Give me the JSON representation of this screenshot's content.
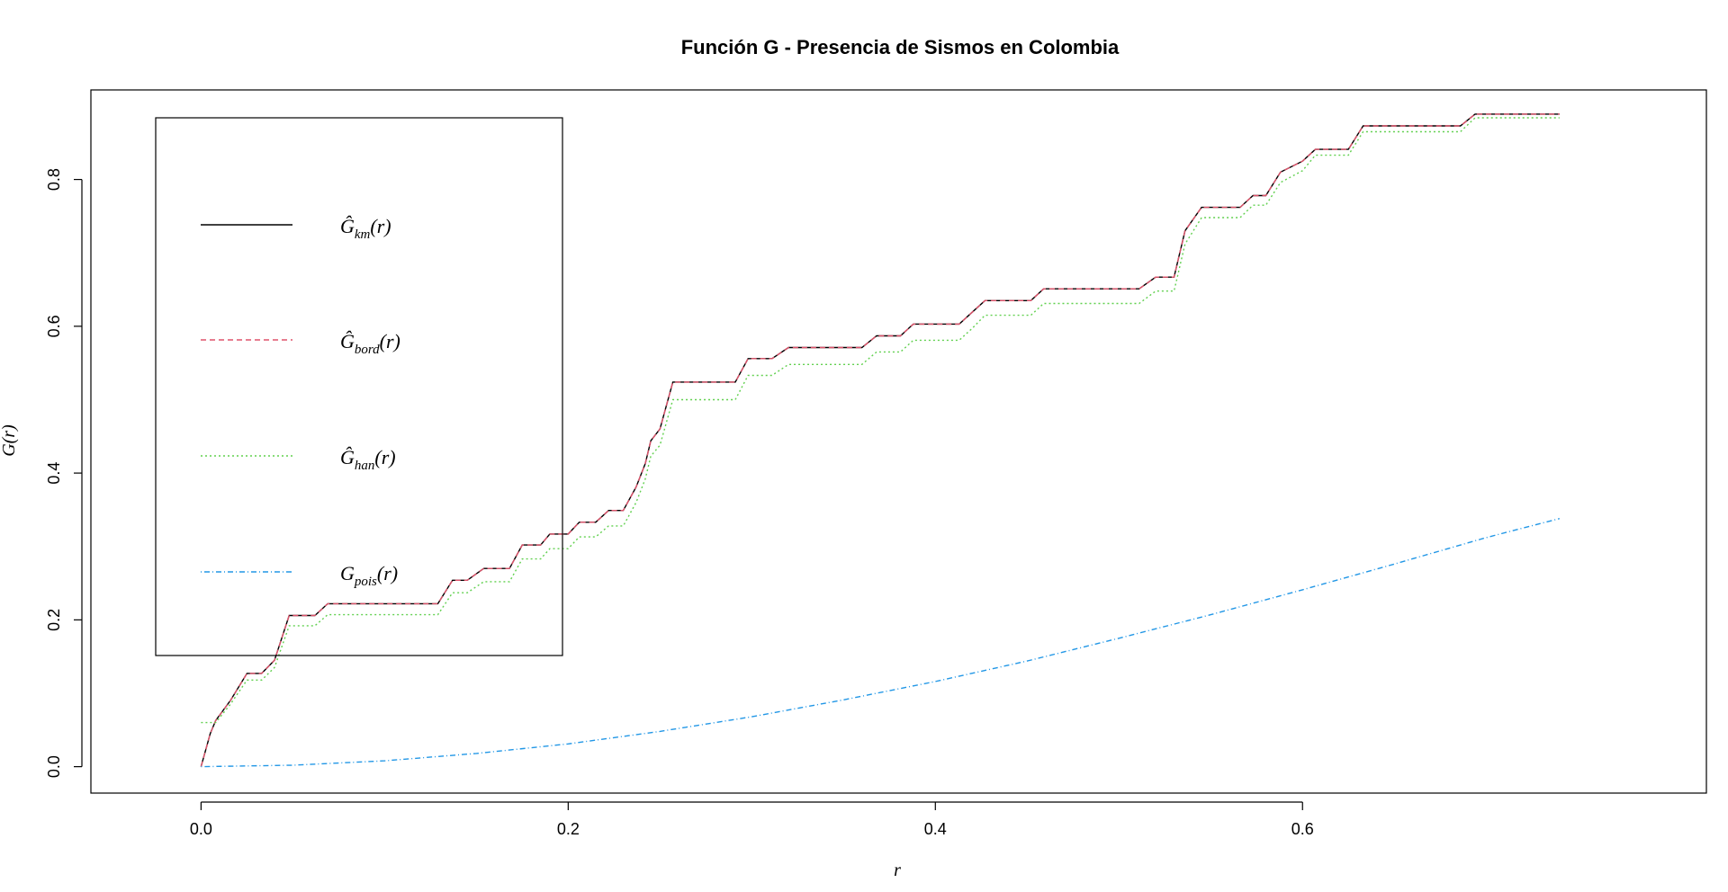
{
  "chart_data": {
    "type": "line",
    "title": "Función G - Presencia de Sismos en Colombia",
    "xlabel": "r",
    "ylabel": "G(r)",
    "xlim": [
      -0.06,
      0.82
    ],
    "ylim": [
      -0.036,
      0.922
    ],
    "x_ticks": [
      "0.0",
      "0.2",
      "0.4",
      "0.6"
    ],
    "x_tick_values": [
      0.0,
      0.2,
      0.4,
      0.6
    ],
    "y_ticks": [
      "0.0",
      "0.2",
      "0.4",
      "0.6",
      "0.8"
    ],
    "y_tick_values": [
      0.0,
      0.2,
      0.4,
      0.6,
      0.8
    ],
    "legend_position": "top-left",
    "series": [
      {
        "name": "Ĝ_km(r)",
        "legend_main": "Ĝ",
        "legend_sub": "km",
        "legend_suffix": "(r)",
        "color": "#000000",
        "dash": "",
        "step_points": [
          [
            0.0,
            0.0
          ],
          [
            0.005,
            0.045
          ],
          [
            0.008,
            0.063
          ],
          [
            0.016,
            0.09
          ],
          [
            0.025,
            0.127
          ],
          [
            0.033,
            0.127
          ],
          [
            0.04,
            0.145
          ],
          [
            0.048,
            0.206
          ],
          [
            0.062,
            0.206
          ],
          [
            0.069,
            0.222
          ],
          [
            0.129,
            0.222
          ],
          [
            0.137,
            0.254
          ],
          [
            0.145,
            0.254
          ],
          [
            0.154,
            0.27
          ],
          [
            0.168,
            0.27
          ],
          [
            0.175,
            0.302
          ],
          [
            0.185,
            0.302
          ],
          [
            0.19,
            0.317
          ],
          [
            0.2,
            0.317
          ],
          [
            0.206,
            0.333
          ],
          [
            0.215,
            0.333
          ],
          [
            0.222,
            0.349
          ],
          [
            0.23,
            0.349
          ],
          [
            0.237,
            0.381
          ],
          [
            0.242,
            0.413
          ],
          [
            0.245,
            0.444
          ],
          [
            0.25,
            0.46
          ],
          [
            0.257,
            0.524
          ],
          [
            0.291,
            0.524
          ],
          [
            0.298,
            0.556
          ],
          [
            0.311,
            0.556
          ],
          [
            0.32,
            0.571
          ],
          [
            0.36,
            0.571
          ],
          [
            0.368,
            0.587
          ],
          [
            0.381,
            0.587
          ],
          [
            0.388,
            0.603
          ],
          [
            0.413,
            0.603
          ],
          [
            0.42,
            0.619
          ],
          [
            0.427,
            0.635
          ],
          [
            0.452,
            0.635
          ],
          [
            0.459,
            0.651
          ],
          [
            0.511,
            0.651
          ],
          [
            0.52,
            0.667
          ],
          [
            0.53,
            0.667
          ],
          [
            0.536,
            0.73
          ],
          [
            0.545,
            0.762
          ],
          [
            0.566,
            0.762
          ],
          [
            0.573,
            0.778
          ],
          [
            0.58,
            0.778
          ],
          [
            0.588,
            0.81
          ],
          [
            0.6,
            0.825
          ],
          [
            0.607,
            0.841
          ],
          [
            0.625,
            0.841
          ],
          [
            0.633,
            0.873
          ],
          [
            0.686,
            0.873
          ],
          [
            0.694,
            0.889
          ],
          [
            0.74,
            0.889
          ]
        ]
      },
      {
        "name": "Ĝ_bord(r)",
        "legend_main": "Ĝ",
        "legend_sub": "bord",
        "legend_suffix": "(r)",
        "color": "#DF536B",
        "dash": "6 4",
        "step_points": [
          [
            0.0,
            0.0
          ],
          [
            0.005,
            0.045
          ],
          [
            0.008,
            0.063
          ],
          [
            0.016,
            0.09
          ],
          [
            0.025,
            0.127
          ],
          [
            0.033,
            0.127
          ],
          [
            0.04,
            0.145
          ],
          [
            0.048,
            0.206
          ],
          [
            0.062,
            0.206
          ],
          [
            0.069,
            0.222
          ],
          [
            0.129,
            0.222
          ],
          [
            0.137,
            0.254
          ],
          [
            0.145,
            0.254
          ],
          [
            0.154,
            0.27
          ],
          [
            0.168,
            0.27
          ],
          [
            0.175,
            0.302
          ],
          [
            0.185,
            0.302
          ],
          [
            0.19,
            0.317
          ],
          [
            0.2,
            0.317
          ],
          [
            0.206,
            0.333
          ],
          [
            0.215,
            0.333
          ],
          [
            0.222,
            0.349
          ],
          [
            0.23,
            0.349
          ],
          [
            0.237,
            0.381
          ],
          [
            0.242,
            0.413
          ],
          [
            0.245,
            0.444
          ],
          [
            0.25,
            0.46
          ],
          [
            0.257,
            0.524
          ],
          [
            0.291,
            0.524
          ],
          [
            0.298,
            0.556
          ],
          [
            0.311,
            0.556
          ],
          [
            0.32,
            0.571
          ],
          [
            0.36,
            0.571
          ],
          [
            0.368,
            0.587
          ],
          [
            0.381,
            0.587
          ],
          [
            0.388,
            0.603
          ],
          [
            0.413,
            0.603
          ],
          [
            0.42,
            0.619
          ],
          [
            0.427,
            0.635
          ],
          [
            0.452,
            0.635
          ],
          [
            0.459,
            0.651
          ],
          [
            0.511,
            0.651
          ],
          [
            0.52,
            0.667
          ],
          [
            0.53,
            0.667
          ],
          [
            0.536,
            0.73
          ],
          [
            0.545,
            0.762
          ],
          [
            0.566,
            0.762
          ],
          [
            0.573,
            0.778
          ],
          [
            0.58,
            0.778
          ],
          [
            0.588,
            0.81
          ],
          [
            0.6,
            0.825
          ],
          [
            0.607,
            0.841
          ],
          [
            0.625,
            0.841
          ],
          [
            0.633,
            0.873
          ],
          [
            0.686,
            0.873
          ],
          [
            0.694,
            0.889
          ],
          [
            0.74,
            0.889
          ]
        ]
      },
      {
        "name": "Ĝ_han(r)",
        "legend_main": "Ĝ",
        "legend_sub": "han",
        "legend_suffix": "(r)",
        "color": "#61D04F",
        "dash": "2 3",
        "step_points": [
          [
            0.0,
            0.06
          ],
          [
            0.008,
            0.06
          ],
          [
            0.016,
            0.085
          ],
          [
            0.025,
            0.118
          ],
          [
            0.033,
            0.118
          ],
          [
            0.04,
            0.135
          ],
          [
            0.048,
            0.192
          ],
          [
            0.062,
            0.192
          ],
          [
            0.069,
            0.207
          ],
          [
            0.129,
            0.207
          ],
          [
            0.137,
            0.237
          ],
          [
            0.145,
            0.237
          ],
          [
            0.154,
            0.252
          ],
          [
            0.168,
            0.252
          ],
          [
            0.175,
            0.283
          ],
          [
            0.185,
            0.283
          ],
          [
            0.19,
            0.297
          ],
          [
            0.2,
            0.297
          ],
          [
            0.206,
            0.313
          ],
          [
            0.215,
            0.313
          ],
          [
            0.222,
            0.328
          ],
          [
            0.23,
            0.328
          ],
          [
            0.237,
            0.36
          ],
          [
            0.242,
            0.392
          ],
          [
            0.245,
            0.423
          ],
          [
            0.25,
            0.438
          ],
          [
            0.257,
            0.5
          ],
          [
            0.291,
            0.5
          ],
          [
            0.298,
            0.533
          ],
          [
            0.311,
            0.533
          ],
          [
            0.32,
            0.548
          ],
          [
            0.36,
            0.548
          ],
          [
            0.368,
            0.565
          ],
          [
            0.381,
            0.565
          ],
          [
            0.388,
            0.581
          ],
          [
            0.413,
            0.581
          ],
          [
            0.42,
            0.597
          ],
          [
            0.427,
            0.615
          ],
          [
            0.452,
            0.615
          ],
          [
            0.459,
            0.631
          ],
          [
            0.511,
            0.631
          ],
          [
            0.52,
            0.648
          ],
          [
            0.53,
            0.648
          ],
          [
            0.536,
            0.712
          ],
          [
            0.545,
            0.748
          ],
          [
            0.566,
            0.748
          ],
          [
            0.573,
            0.765
          ],
          [
            0.58,
            0.765
          ],
          [
            0.588,
            0.796
          ],
          [
            0.6,
            0.812
          ],
          [
            0.607,
            0.833
          ],
          [
            0.625,
            0.833
          ],
          [
            0.633,
            0.865
          ],
          [
            0.686,
            0.865
          ],
          [
            0.694,
            0.884
          ],
          [
            0.74,
            0.884
          ]
        ]
      },
      {
        "name": "G_pois(r)",
        "legend_main": "G",
        "legend_sub": "pois",
        "legend_suffix": "(r)",
        "color": "#2297E6",
        "dash": "1 3 6 3",
        "x": [
          0.0,
          0.05,
          0.1,
          0.15,
          0.2,
          0.25,
          0.3,
          0.35,
          0.4,
          0.45,
          0.5,
          0.55,
          0.6,
          0.65,
          0.7,
          0.74
        ],
        "values": [
          0.0,
          0.002,
          0.008,
          0.018,
          0.031,
          0.048,
          0.068,
          0.091,
          0.116,
          0.144,
          0.175,
          0.207,
          0.241,
          0.276,
          0.312,
          0.338
        ]
      }
    ]
  }
}
